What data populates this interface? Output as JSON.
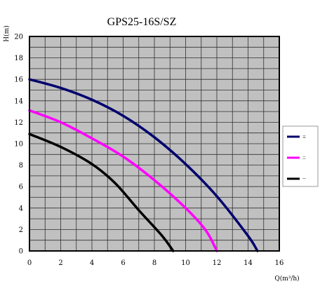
{
  "chart_data": {
    "type": "line",
    "title": "GPS25-16S/SZ",
    "xlabel": "Q(m³/h)",
    "ylabel": "H(m)",
    "xlim": [
      0,
      16
    ],
    "ylim": [
      0,
      20
    ],
    "xticks": [
      "0",
      "2",
      "4",
      "6",
      "8",
      "10",
      "12",
      "14",
      "16"
    ],
    "yticks": [
      "0",
      "2",
      "4",
      "6",
      "8",
      "10",
      "12",
      "14",
      "16",
      "18",
      "20"
    ],
    "grid": true,
    "background": "#c0c0c0",
    "legend_position": "right",
    "series": [
      {
        "name": "三",
        "color": "#00006e",
        "points": [
          [
            0,
            16.0
          ],
          [
            2,
            15.2
          ],
          [
            4,
            14.1
          ],
          [
            6,
            12.6
          ],
          [
            8,
            10.6
          ],
          [
            10,
            8.1
          ],
          [
            12,
            5.1
          ],
          [
            14,
            1.4
          ],
          [
            14.6,
            0
          ]
        ]
      },
      {
        "name": "二",
        "color": "#ff00ff",
        "points": [
          [
            0,
            13.1
          ],
          [
            2,
            12.0
          ],
          [
            4,
            10.5
          ],
          [
            6,
            8.8
          ],
          [
            8,
            6.6
          ],
          [
            10,
            4.0
          ],
          [
            11.3,
            1.9
          ],
          [
            12.0,
            0
          ]
        ]
      },
      {
        "name": "一",
        "color": "#000000",
        "points": [
          [
            0,
            10.9
          ],
          [
            2,
            9.7
          ],
          [
            4,
            8.1
          ],
          [
            5.5,
            6.3
          ],
          [
            7,
            3.8
          ],
          [
            8.5,
            1.4
          ],
          [
            9.2,
            0
          ]
        ]
      }
    ]
  }
}
